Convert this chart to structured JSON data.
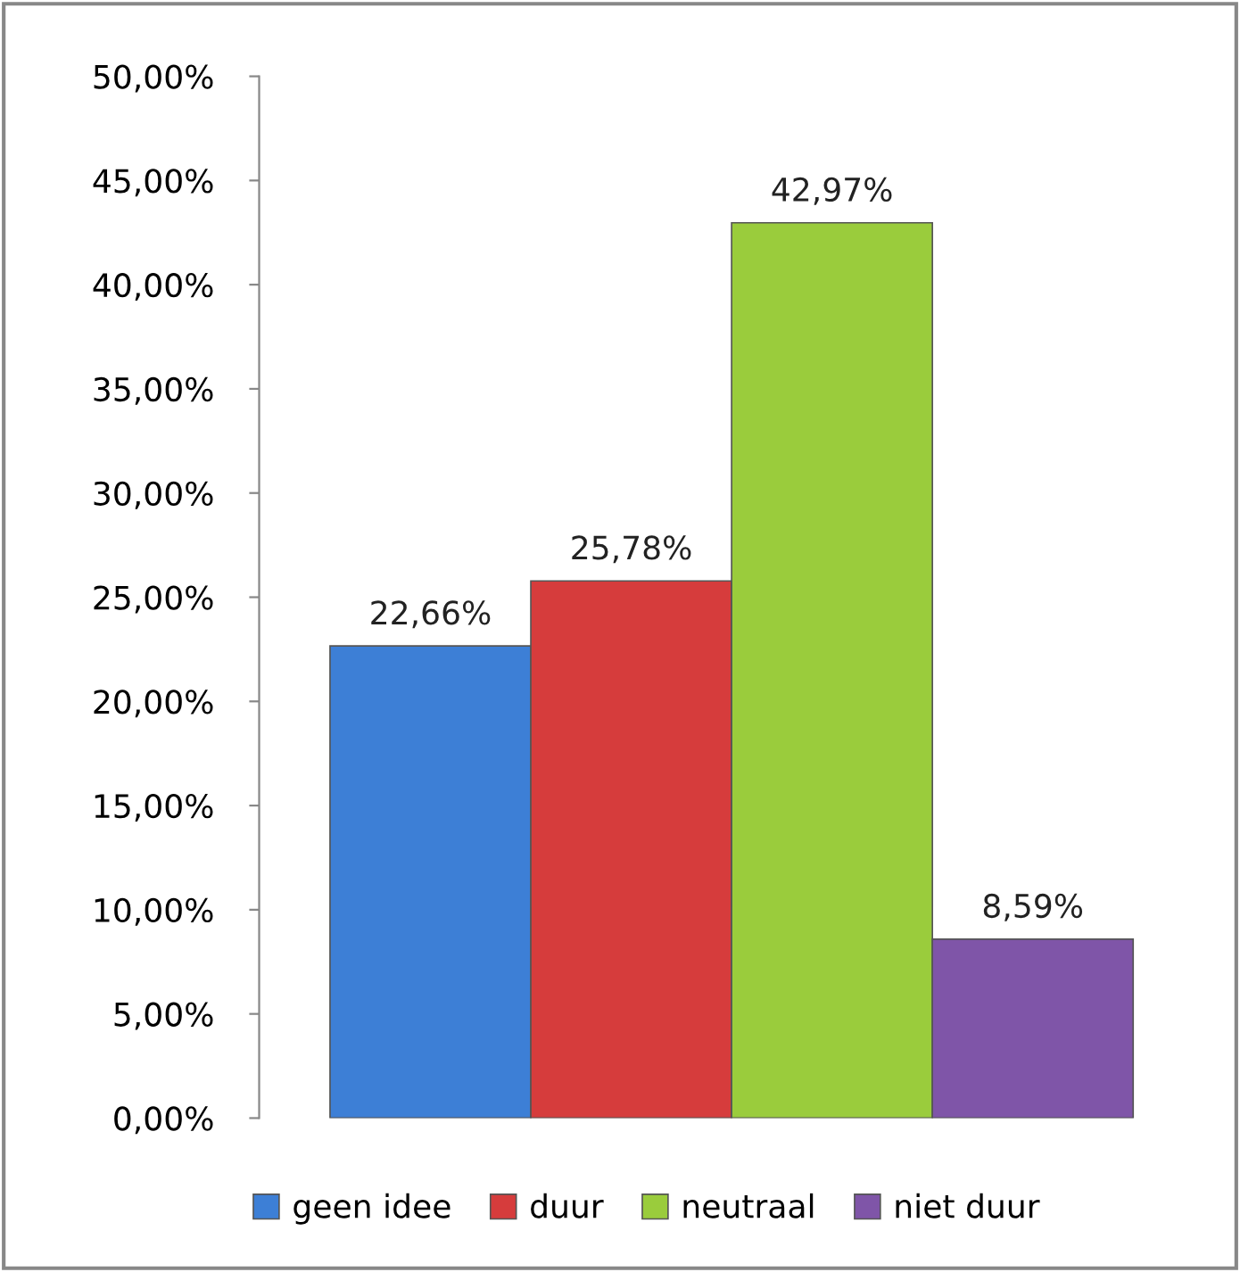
{
  "chart_data": {
    "type": "bar",
    "categories": [
      null
    ],
    "series": [
      {
        "name": "geen idee",
        "color": "#3d7fd6",
        "values": [
          22.66
        ],
        "value_labels": [
          "22,66%"
        ]
      },
      {
        "name": "duur",
        "color": "#d63c3c",
        "values": [
          25.78
        ],
        "value_labels": [
          "25,78%"
        ]
      },
      {
        "name": "neutraal",
        "color": "#9acc3c",
        "values": [
          42.97
        ],
        "value_labels": [
          "42,97%"
        ]
      },
      {
        "name": "niet duur",
        "color": "#7f55a8",
        "values": [
          8.59
        ],
        "value_labels": [
          "8,59%"
        ]
      }
    ],
    "ylim": [
      0,
      50
    ],
    "yticks": [
      {
        "value": 0,
        "label": "0,00%"
      },
      {
        "value": 5,
        "label": "5,00%"
      },
      {
        "value": 10,
        "label": "10,00%"
      },
      {
        "value": 15,
        "label": "15,00%"
      },
      {
        "value": 20,
        "label": "20,00%"
      },
      {
        "value": 25,
        "label": "25,00%"
      },
      {
        "value": 30,
        "label": "30,00%"
      },
      {
        "value": 35,
        "label": "35,00%"
      },
      {
        "value": 40,
        "label": "40,00%"
      },
      {
        "value": 45,
        "label": "45,00%"
      },
      {
        "value": 50,
        "label": "50,00%"
      }
    ],
    "grid": false,
    "legend": "bottom"
  }
}
